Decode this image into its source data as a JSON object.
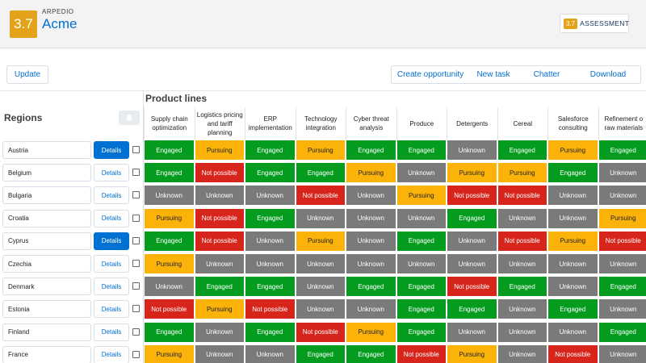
{
  "header": {
    "logo_text": "3.7",
    "brand": "ARPEDIO",
    "account": "Acme",
    "assessment_badge": "3.7",
    "assessment_label": "ASSESSMENT"
  },
  "toolbar": {
    "update_label": "Update",
    "actions": [
      "Create opportunity",
      "New task",
      "Chatter",
      "Download"
    ]
  },
  "grid": {
    "regions_title": "Regions",
    "product_lines_title": "Product lines",
    "details_label": "Details",
    "columns": [
      "Supply chain\noptimization",
      "Logistics pricing\nand tariff\nplanning",
      "ERP\nimplementation",
      "Technology\nintegration",
      "Cyber threat\nanalysis",
      "Produce",
      "Detergents",
      "Cereal",
      "Salesforce\nconsulting",
      "Refinement o\nraw materials"
    ],
    "status_labels": {
      "E": "Engaged",
      "P": "Pursuing",
      "U": "Unknown",
      "N": "Not possible"
    },
    "status_colors": {
      "Engaged": "#049c1f",
      "Pursuing": "#fbb209",
      "Unknown": "#7a7a7a",
      "Not possible": "#d8251c"
    },
    "rows": [
      {
        "region": "Austria",
        "details_active": true,
        "statuses": [
          "Engaged",
          "Pursuing",
          "Engaged",
          "Pursuing",
          "Engaged",
          "Engaged",
          "Unknown",
          "Engaged",
          "Pursuing",
          "Engaged"
        ]
      },
      {
        "region": "Belgium",
        "details_active": false,
        "statuses": [
          "Engaged",
          "Not possible",
          "Engaged",
          "Engaged",
          "Pursuing",
          "Unknown",
          "Pursuing",
          "Pursuing",
          "Engaged",
          "Unknown"
        ]
      },
      {
        "region": "Bulgaria",
        "details_active": false,
        "statuses": [
          "Unknown",
          "Unknown",
          "Unknown",
          "Not possible",
          "Unknown",
          "Pursuing",
          "Not possible",
          "Not possible",
          "Unknown",
          "Unknown"
        ]
      },
      {
        "region": "Croatia",
        "details_active": false,
        "statuses": [
          "Pursuing",
          "Not possible",
          "Engaged",
          "Unknown",
          "Unknown",
          "Unknown",
          "Engaged",
          "Unknown",
          "Unknown",
          "Pursuing"
        ]
      },
      {
        "region": "Cyprus",
        "details_active": true,
        "statuses": [
          "Engaged",
          "Not possible",
          "Unknown",
          "Pursuing",
          "Unknown",
          "Engaged",
          "Unknown",
          "Not possible",
          "Pursuing",
          "Not possible"
        ]
      },
      {
        "region": "Czechia",
        "details_active": false,
        "statuses": [
          "Pursuing",
          "Unknown",
          "Unknown",
          "Unknown",
          "Unknown",
          "Unknown",
          "Unknown",
          "Unknown",
          "Unknown",
          "Unknown"
        ]
      },
      {
        "region": "Denmark",
        "details_active": false,
        "statuses": [
          "Unknown",
          "Engaged",
          "Engaged",
          "Unknown",
          "Engaged",
          "Engaged",
          "Not possible",
          "Engaged",
          "Unknown",
          "Engaged"
        ]
      },
      {
        "region": "Estonia",
        "details_active": false,
        "statuses": [
          "Not possible",
          "Pursuing",
          "Not possible",
          "Unknown",
          "Unknown",
          "Engaged",
          "Engaged",
          "Unknown",
          "Engaged",
          "Unknown"
        ]
      },
      {
        "region": "Finland",
        "details_active": false,
        "statuses": [
          "Engaged",
          "Unknown",
          "Engaged",
          "Not possible",
          "Pursuing",
          "Engaged",
          "Unknown",
          "Unknown",
          "Unknown",
          "Engaged"
        ]
      },
      {
        "region": "France",
        "details_active": false,
        "statuses": [
          "Pursuing",
          "Unknown",
          "Unknown",
          "Engaged",
          "Engaged",
          "Not possible",
          "Pursuing",
          "Unknown",
          "Not possible",
          "Unknown"
        ]
      }
    ]
  }
}
